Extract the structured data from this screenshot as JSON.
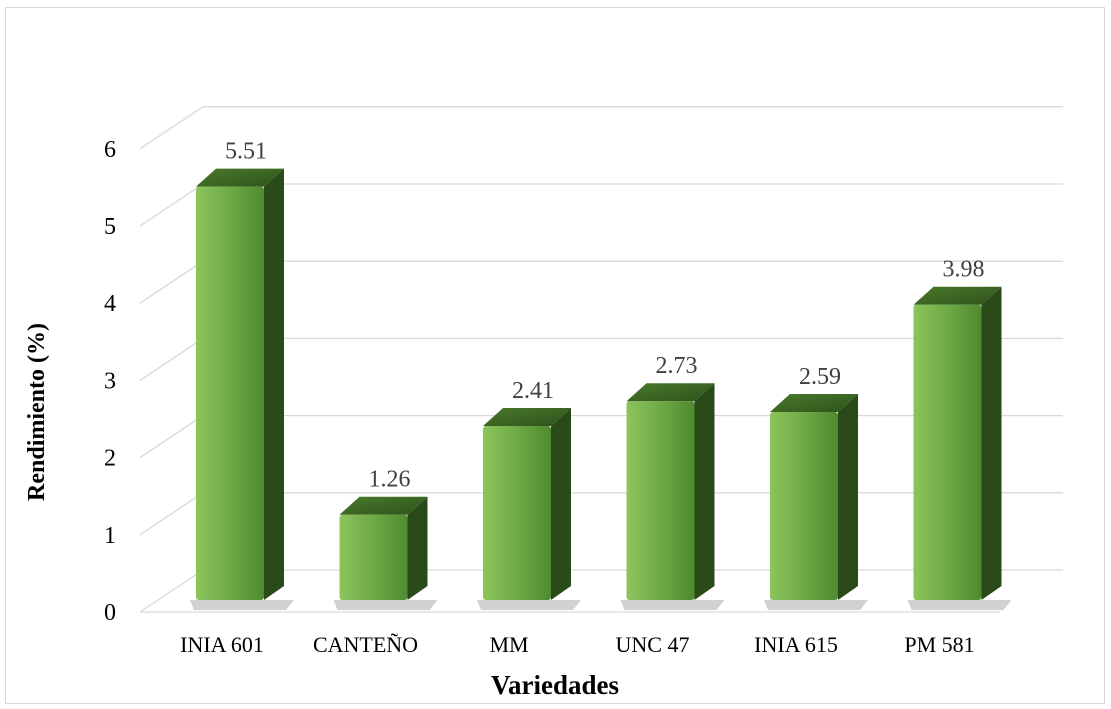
{
  "chart_data": {
    "type": "bar",
    "title": "",
    "xlabel": "Variedades",
    "ylabel": "Rendimiento (%)",
    "categories": [
      "INIA 601",
      "CANTEÑO",
      "MM",
      "UNC 47",
      "INIA 615",
      "PM 581"
    ],
    "values": [
      5.51,
      1.26,
      2.41,
      2.73,
      2.59,
      3.98
    ],
    "data_labels": [
      "5.51",
      "1.26",
      "2.41",
      "2.73",
      "2.59",
      "3.98"
    ],
    "yticks": [
      "0",
      "1",
      "2",
      "3",
      "4",
      "5",
      "6"
    ],
    "ylim": [
      0,
      6
    ],
    "grid": true,
    "legend": "none",
    "bar_color": "#6aa744",
    "bar_side_color": "#2b4a1a"
  }
}
